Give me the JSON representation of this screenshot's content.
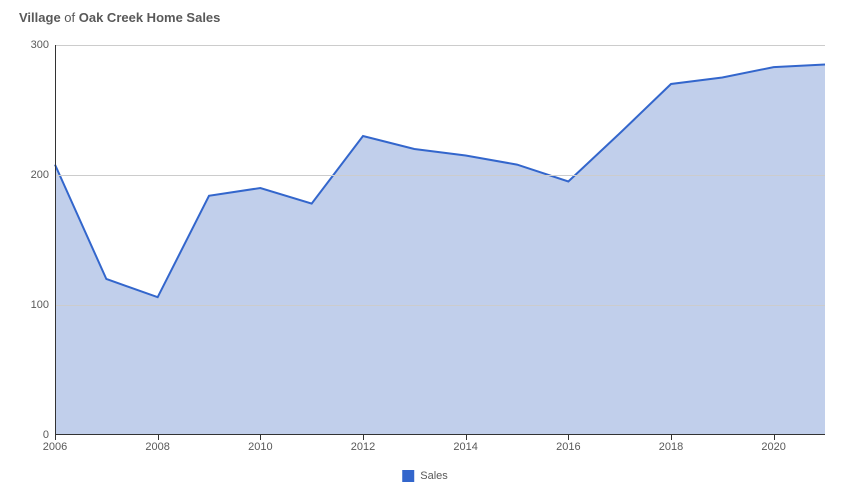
{
  "chart": {
    "type": "area",
    "title_parts": {
      "prefix": "Village ",
      "of": "of",
      "suffix": " Oak Creek Home Sales"
    },
    "background_color": "#ffffff",
    "x": {
      "values": [
        2006,
        2007,
        2008,
        2009,
        2010,
        2011,
        2012,
        2013,
        2014,
        2015,
        2016,
        2017,
        2018,
        2019,
        2020,
        2021
      ],
      "tick_values": [
        2006,
        2008,
        2010,
        2012,
        2014,
        2016,
        2018,
        2020
      ],
      "xlim": [
        2006,
        2021
      ]
    },
    "y": {
      "ylim": [
        0,
        300
      ],
      "tick_values": [
        0,
        100,
        200,
        300
      ],
      "grid_values": [
        100,
        200,
        300
      ]
    },
    "series": {
      "name": "Sales",
      "values": [
        208,
        120,
        106,
        184,
        190,
        178,
        230,
        220,
        215,
        208,
        195,
        232,
        270,
        275,
        283,
        285
      ],
      "line_color": "#3366cc",
      "line_width": 2,
      "fill_color": "#c1cfeb",
      "fill_opacity": 1.0
    },
    "grid_color": "#cccccc",
    "axis_color": "#333333",
    "tick_label_color": "#595959",
    "tick_label_fontsize": 11,
    "title_fontsize": 13,
    "legend": {
      "label": "Sales",
      "swatch_color": "#3366cc"
    }
  }
}
